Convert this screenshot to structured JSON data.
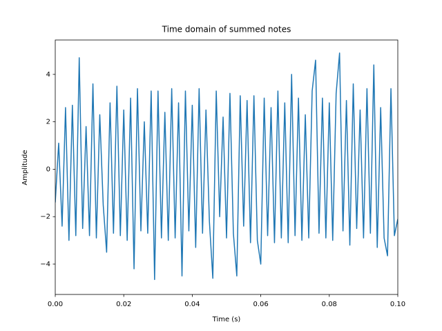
{
  "chart_data": {
    "type": "line",
    "title": "Time domain of summed notes",
    "xlabel": "Time (s)",
    "ylabel": "Amplitude",
    "color": "#1f77b4",
    "x": [
      0,
      0.001,
      0.002,
      0.003,
      0.004,
      0.005,
      0.006,
      0.007,
      0.008,
      0.009,
      0.01,
      0.011,
      0.012,
      0.013,
      0.014,
      0.015,
      0.016,
      0.017,
      0.018,
      0.019,
      0.02,
      0.021,
      0.022,
      0.023,
      0.024,
      0.025,
      0.026,
      0.027,
      0.028,
      0.029,
      0.03,
      0.031,
      0.032,
      0.033,
      0.034,
      0.035,
      0.036,
      0.037,
      0.038,
      0.039,
      0.04,
      0.041,
      0.042,
      0.043,
      0.044,
      0.045,
      0.046,
      0.047,
      0.048,
      0.049,
      0.05,
      0.051,
      0.052,
      0.053,
      0.054,
      0.055,
      0.056,
      0.057,
      0.058,
      0.059,
      0.06,
      0.061,
      0.062,
      0.063,
      0.064,
      0.065,
      0.066,
      0.067,
      0.068,
      0.069,
      0.07,
      0.071,
      0.072,
      0.073,
      0.074,
      0.075,
      0.076,
      0.077,
      0.078,
      0.079,
      0.08,
      0.081,
      0.082,
      0.083,
      0.084,
      0.085,
      0.086,
      0.087,
      0.088,
      0.089,
      0.09,
      0.091,
      0.092,
      0.093,
      0.094,
      0.095,
      0.096,
      0.097,
      0.098,
      0.099,
      0.1
    ],
    "values": [
      -1.4,
      1.1,
      -2.4,
      2.6,
      -3.0,
      2.7,
      -2.8,
      4.7,
      -2.5,
      1.8,
      -2.8,
      3.6,
      -2.9,
      2.3,
      -1.5,
      -3.5,
      2.8,
      -2.7,
      3.5,
      -2.8,
      2.5,
      -3.0,
      3.0,
      -4.2,
      3.4,
      -2.6,
      2.0,
      -2.7,
      3.3,
      -4.65,
      3.3,
      -2.9,
      2.4,
      -3.0,
      3.4,
      -2.9,
      2.8,
      -4.5,
      3.3,
      -2.6,
      2.7,
      -3.3,
      3.4,
      -2.7,
      2.5,
      -2.2,
      -4.6,
      3.3,
      -2.0,
      2.2,
      -2.9,
      3.2,
      -2.7,
      -4.5,
      3.1,
      -2.4,
      2.9,
      -3.1,
      3.1,
      -3.0,
      -4.0,
      3.0,
      -2.8,
      2.6,
      -3.1,
      3.3,
      -2.9,
      2.8,
      -3.1,
      4.0,
      -2.8,
      3.0,
      -3.0,
      2.3,
      -2.9,
      3.3,
      4.6,
      -2.7,
      3.0,
      -2.9,
      2.8,
      -3.0,
      3.2,
      4.9,
      -2.6,
      2.9,
      -3.2,
      3.6,
      -2.5,
      2.5,
      -2.9,
      3.4,
      -2.7,
      4.4,
      -3.3,
      2.6,
      -2.9,
      -3.65,
      3.4,
      -2.8,
      -2.1
    ],
    "xlim": [
      0,
      0.1
    ],
    "ylim": [
      -5.28,
      5.45
    ],
    "xticks": [
      {
        "value": 0,
        "label": "0.00"
      },
      0.02,
      0.04,
      0.06,
      0.08,
      {
        "value": 0.1,
        "label": "0.10"
      }
    ],
    "yticks": [
      {
        "value": -4,
        "label": "−4"
      },
      {
        "value": -2,
        "label": "−2"
      },
      0,
      2,
      4
    ]
  }
}
